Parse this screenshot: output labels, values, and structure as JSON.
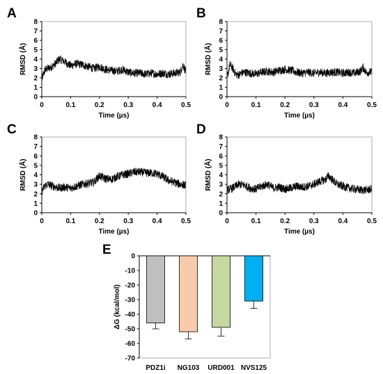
{
  "chart_data": [
    {
      "panel": "A",
      "type": "line",
      "xlabel": "Time (µs)",
      "ylabel": "RMSD (Å)",
      "xlim": [
        0,
        0.5
      ],
      "ylim": [
        0,
        8
      ],
      "xticks": [
        "0",
        "0.1",
        "0.2",
        "0.3",
        "0.4",
        "0.5"
      ],
      "yticks": [
        "0",
        "1",
        "2",
        "3",
        "4",
        "5",
        "6",
        "7",
        "8"
      ],
      "color": "#000000",
      "series": [
        {
          "x": [
            0,
            0.01,
            0.02,
            0.03,
            0.04,
            0.05,
            0.06,
            0.07,
            0.08,
            0.09,
            0.1,
            0.12,
            0.14,
            0.16,
            0.18,
            0.2,
            0.22,
            0.24,
            0.26,
            0.28,
            0.3,
            0.32,
            0.34,
            0.36,
            0.38,
            0.4,
            0.42,
            0.44,
            0.46,
            0.48,
            0.49,
            0.5
          ],
          "y": [
            1.8,
            2.8,
            3.0,
            3.1,
            3.3,
            3.6,
            4.0,
            3.9,
            3.7,
            3.5,
            3.3,
            3.5,
            3.4,
            3.2,
            3.0,
            3.2,
            2.9,
            2.8,
            2.7,
            2.9,
            2.6,
            2.5,
            2.5,
            2.4,
            2.5,
            2.4,
            2.5,
            2.4,
            2.5,
            2.6,
            3.4,
            2.6
          ]
        }
      ]
    },
    {
      "panel": "B",
      "type": "line",
      "xlabel": "Time (µs)",
      "ylabel": "RMSD (Å)",
      "xlim": [
        0,
        0.5
      ],
      "ylim": [
        0,
        8
      ],
      "xticks": [
        "0",
        "0.1",
        "0.2",
        "0.3",
        "0.4",
        "0.5"
      ],
      "yticks": [
        "0",
        "1",
        "2",
        "3",
        "4",
        "5",
        "6",
        "7",
        "8"
      ],
      "color": "#000000",
      "series": [
        {
          "x": [
            0,
            0.01,
            0.02,
            0.03,
            0.04,
            0.05,
            0.06,
            0.08,
            0.1,
            0.12,
            0.14,
            0.16,
            0.18,
            0.2,
            0.22,
            0.24,
            0.26,
            0.28,
            0.3,
            0.32,
            0.34,
            0.36,
            0.38,
            0.4,
            0.42,
            0.44,
            0.46,
            0.47,
            0.48,
            0.5
          ],
          "y": [
            2.0,
            3.4,
            3.0,
            2.4,
            2.3,
            2.5,
            2.6,
            2.5,
            2.4,
            2.6,
            2.7,
            2.6,
            2.8,
            2.9,
            2.8,
            2.6,
            2.5,
            2.6,
            2.5,
            2.6,
            2.5,
            2.6,
            2.6,
            2.5,
            2.6,
            2.5,
            2.7,
            3.1,
            2.6,
            2.6
          ]
        }
      ]
    },
    {
      "panel": "C",
      "type": "line",
      "xlabel": "Time (µs)",
      "ylabel": "RMSD (Å)",
      "xlim": [
        0,
        0.5
      ],
      "ylim": [
        0,
        8
      ],
      "xticks": [
        "0",
        "0.1",
        "0.2",
        "0.3",
        "0.4",
        "0.5"
      ],
      "yticks": [
        "0",
        "1",
        "2",
        "3",
        "4",
        "5",
        "6",
        "7",
        "8"
      ],
      "color": "#000000",
      "series": [
        {
          "x": [
            0,
            0.01,
            0.02,
            0.04,
            0.06,
            0.08,
            0.1,
            0.12,
            0.14,
            0.16,
            0.18,
            0.2,
            0.22,
            0.24,
            0.26,
            0.28,
            0.3,
            0.32,
            0.34,
            0.36,
            0.38,
            0.4,
            0.42,
            0.44,
            0.46,
            0.48,
            0.5
          ],
          "y": [
            2.2,
            2.8,
            3.0,
            2.8,
            2.6,
            2.7,
            2.6,
            2.8,
            3.0,
            3.1,
            3.2,
            3.9,
            3.6,
            3.5,
            3.8,
            4.0,
            4.1,
            4.3,
            4.3,
            4.2,
            4.2,
            4.1,
            3.8,
            3.4,
            3.2,
            3.0,
            2.9
          ]
        }
      ]
    },
    {
      "panel": "D",
      "type": "line",
      "xlabel": "Time (µs)",
      "ylabel": "RMSD (Å)",
      "xlim": [
        0,
        0.5
      ],
      "ylim": [
        0,
        8
      ],
      "xticks": [
        "0",
        "0.1",
        "0.2",
        "0.3",
        "0.4",
        "0.5"
      ],
      "yticks": [
        "0",
        "1",
        "2",
        "3",
        "4",
        "5",
        "6",
        "7",
        "8"
      ],
      "color": "#000000",
      "series": [
        {
          "x": [
            0,
            0.02,
            0.04,
            0.06,
            0.08,
            0.1,
            0.12,
            0.14,
            0.16,
            0.18,
            0.2,
            0.22,
            0.24,
            0.26,
            0.28,
            0.3,
            0.32,
            0.34,
            0.35,
            0.36,
            0.38,
            0.4,
            0.42,
            0.44,
            0.46,
            0.48,
            0.5
          ],
          "y": [
            2.4,
            2.6,
            3.0,
            2.9,
            2.6,
            2.5,
            2.8,
            3.0,
            2.6,
            2.7,
            2.5,
            2.6,
            2.8,
            2.7,
            2.8,
            3.0,
            3.3,
            3.5,
            3.9,
            3.6,
            3.0,
            2.8,
            2.6,
            2.5,
            2.4,
            2.4,
            2.5
          ]
        }
      ]
    },
    {
      "panel": "E",
      "type": "bar",
      "categories": [
        "PDZ1i",
        "NG103",
        "URD001",
        "NVS125"
      ],
      "values": [
        -46,
        -52,
        -49,
        -31
      ],
      "errors": [
        4,
        5,
        6,
        5
      ],
      "colors": [
        "#bfbfbf",
        "#f8cbad",
        "#c5d9a0",
        "#00b0f0"
      ],
      "ylabel": "ΔG (kcal/mol)",
      "ylim": [
        -70,
        0
      ],
      "yticks": [
        "0",
        "-10",
        "-20",
        "-30",
        "-40",
        "-50",
        "-60",
        "-70"
      ]
    }
  ]
}
